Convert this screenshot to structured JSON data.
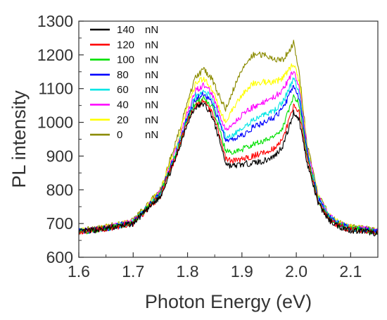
{
  "chart_data": {
    "type": "line",
    "xlabel": "Photon Energy (eV)",
    "ylabel": "PL intensity",
    "xlim": [
      1.6,
      2.15
    ],
    "ylim": [
      600,
      1300
    ],
    "xticks": [
      "1.6",
      "1.7",
      "1.8",
      "1.9",
      "2.0",
      "2.1"
    ],
    "xtick_values": [
      1.6,
      1.7,
      1.8,
      1.9,
      2.0,
      2.1
    ],
    "yticks": [
      "600",
      "700",
      "800",
      "900",
      "1000",
      "1100",
      "1200",
      "1300"
    ],
    "ytick_values": [
      600,
      700,
      800,
      900,
      1000,
      1100,
      1200,
      1300
    ],
    "grid": false,
    "legend_position": "top-left",
    "series": [
      {
        "name": "140 nN",
        "label_value": "140",
        "label_unit": "nN",
        "color": "#000000",
        "x": [
          1.6,
          1.65,
          1.7,
          1.75,
          1.78,
          1.8,
          1.815,
          1.83,
          1.845,
          1.86,
          1.87,
          1.88,
          1.9,
          1.92,
          1.94,
          1.96,
          1.975,
          1.99,
          1.995,
          2.005,
          2.02,
          2.04,
          2.06,
          2.08,
          2.1,
          2.12,
          2.15
        ],
        "y": [
          675,
          685,
          700,
          780,
          900,
          1000,
          1045,
          1055,
          1020,
          940,
          880,
          870,
          875,
          880,
          885,
          900,
          930,
          1000,
          1030,
          1010,
          880,
          760,
          710,
          690,
          680,
          678,
          670
        ]
      },
      {
        "name": "120 nN",
        "label_value": "120",
        "label_unit": "nN",
        "color": "#ff0000",
        "x": [
          1.6,
          1.65,
          1.7,
          1.75,
          1.78,
          1.8,
          1.815,
          1.83,
          1.845,
          1.86,
          1.87,
          1.88,
          1.9,
          1.92,
          1.94,
          1.96,
          1.975,
          1.99,
          1.995,
          2.005,
          2.02,
          2.04,
          2.06,
          2.08,
          2.1,
          2.12,
          2.15
        ],
        "y": [
          675,
          685,
          700,
          782,
          905,
          1005,
          1050,
          1060,
          1030,
          955,
          895,
          885,
          890,
          900,
          910,
          925,
          950,
          1020,
          1050,
          1030,
          890,
          765,
          712,
          692,
          682,
          680,
          672
        ]
      },
      {
        "name": "100 nN",
        "label_value": "100",
        "label_unit": "nN",
        "color": "#00e000",
        "x": [
          1.6,
          1.65,
          1.7,
          1.75,
          1.78,
          1.8,
          1.815,
          1.83,
          1.845,
          1.86,
          1.87,
          1.88,
          1.9,
          1.92,
          1.94,
          1.96,
          1.975,
          1.99,
          1.995,
          2.005,
          2.02,
          2.04,
          2.06,
          2.08,
          2.1,
          2.12,
          2.15
        ],
        "y": [
          675,
          685,
          702,
          785,
          910,
          1010,
          1060,
          1070,
          1045,
          975,
          915,
          910,
          920,
          935,
          945,
          960,
          985,
          1050,
          1080,
          1055,
          900,
          770,
          715,
          695,
          685,
          682,
          674
        ]
      },
      {
        "name": "80 nN",
        "label_value": "80",
        "label_unit": "nN",
        "color": "#0000ff",
        "x": [
          1.6,
          1.65,
          1.7,
          1.75,
          1.78,
          1.8,
          1.815,
          1.83,
          1.845,
          1.86,
          1.87,
          1.88,
          1.9,
          1.92,
          1.94,
          1.96,
          1.975,
          1.99,
          1.995,
          2.005,
          2.02,
          2.04,
          2.06,
          2.08,
          2.1,
          2.12,
          2.15
        ],
        "y": [
          676,
          686,
          703,
          788,
          915,
          1015,
          1070,
          1085,
          1060,
          995,
          945,
          945,
          960,
          985,
          1000,
          1015,
          1040,
          1090,
          1110,
          1075,
          910,
          775,
          718,
          697,
          686,
          683,
          675
        ]
      },
      {
        "name": "60 nN",
        "label_value": "60",
        "label_unit": "nN",
        "color": "#00e5e5",
        "x": [
          1.6,
          1.65,
          1.7,
          1.75,
          1.78,
          1.8,
          1.815,
          1.83,
          1.845,
          1.86,
          1.87,
          1.88,
          1.9,
          1.92,
          1.94,
          1.96,
          1.975,
          1.99,
          1.995,
          2.005,
          2.02,
          2.04,
          2.06,
          2.08,
          2.1,
          2.12,
          2.15
        ],
        "y": [
          676,
          686,
          704,
          790,
          920,
          1020,
          1080,
          1095,
          1070,
          1005,
          955,
          960,
          980,
          1005,
          1020,
          1035,
          1060,
          1110,
          1130,
          1090,
          915,
          778,
          720,
          698,
          687,
          684,
          676
        ]
      },
      {
        "name": "40 nN",
        "label_value": "40",
        "label_unit": "nN",
        "color": "#ff00ff",
        "x": [
          1.6,
          1.65,
          1.7,
          1.75,
          1.78,
          1.8,
          1.815,
          1.83,
          1.845,
          1.86,
          1.87,
          1.88,
          1.9,
          1.92,
          1.94,
          1.96,
          1.975,
          1.99,
          1.995,
          2.005,
          2.02,
          2.04,
          2.06,
          2.08,
          2.1,
          2.12,
          2.15
        ],
        "y": [
          676,
          687,
          705,
          792,
          925,
          1030,
          1095,
          1110,
          1085,
          1020,
          975,
          990,
          1020,
          1045,
          1060,
          1075,
          1095,
          1140,
          1155,
          1110,
          920,
          780,
          722,
          699,
          688,
          685,
          677
        ]
      },
      {
        "name": "20 nN",
        "label_value": "20",
        "label_unit": "nN",
        "color": "#ffff00",
        "x": [
          1.6,
          1.65,
          1.7,
          1.75,
          1.78,
          1.8,
          1.815,
          1.83,
          1.845,
          1.86,
          1.87,
          1.88,
          1.9,
          1.92,
          1.94,
          1.96,
          1.975,
          1.99,
          1.995,
          2.005,
          2.02,
          2.04,
          2.06,
          2.08,
          2.1,
          2.12,
          2.15
        ],
        "y": [
          677,
          688,
          706,
          795,
          935,
          1045,
          1115,
          1130,
          1100,
          1035,
          1000,
          1030,
          1080,
          1115,
          1120,
          1120,
          1130,
          1165,
          1175,
          1125,
          925,
          783,
          724,
          700,
          689,
          686,
          678
        ]
      },
      {
        "name": "0 nN",
        "label_value": "0",
        "label_unit": "nN",
        "color": "#8b8b00",
        "x": [
          1.6,
          1.65,
          1.7,
          1.75,
          1.78,
          1.8,
          1.815,
          1.83,
          1.845,
          1.86,
          1.87,
          1.88,
          1.9,
          1.92,
          1.94,
          1.96,
          1.975,
          1.99,
          1.995,
          2.005,
          2.02,
          2.04,
          2.06,
          2.08,
          2.1,
          2.12,
          2.15
        ],
        "y": [
          678,
          690,
          708,
          800,
          950,
          1060,
          1135,
          1155,
          1130,
          1070,
          1040,
          1080,
          1160,
          1200,
          1200,
          1185,
          1185,
          1220,
          1235,
          1150,
          935,
          786,
          726,
          702,
          690,
          687,
          679
        ]
      }
    ]
  }
}
